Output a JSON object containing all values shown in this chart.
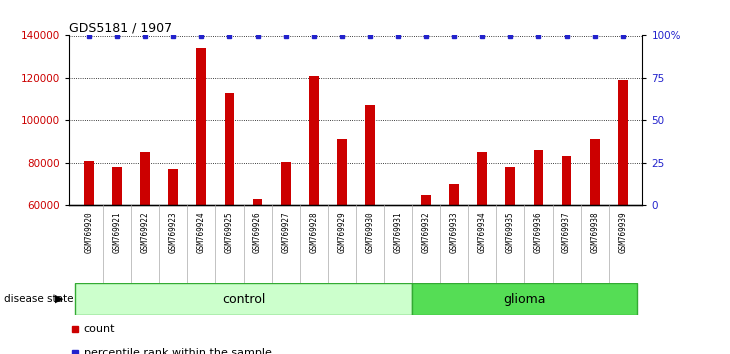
{
  "title": "GDS5181 / 1907",
  "samples": [
    "GSM769920",
    "GSM769921",
    "GSM769922",
    "GSM769923",
    "GSM769924",
    "GSM769925",
    "GSM769926",
    "GSM769927",
    "GSM769928",
    "GSM769929",
    "GSM769930",
    "GSM769931",
    "GSM769932",
    "GSM769933",
    "GSM769934",
    "GSM769935",
    "GSM769936",
    "GSM769937",
    "GSM769938",
    "GSM769939"
  ],
  "counts": [
    81000,
    78000,
    85000,
    77000,
    134000,
    113000,
    63000,
    80500,
    121000,
    91000,
    107000,
    0,
    65000,
    70000,
    85000,
    78000,
    86000,
    83000,
    91000,
    119000
  ],
  "bar_color": "#cc0000",
  "dot_color": "#2222cc",
  "ylim_left": [
    60000,
    140000
  ],
  "ylim_right": [
    0,
    100
  ],
  "yticks_left": [
    60000,
    80000,
    100000,
    120000,
    140000
  ],
  "ytick_labels_left": [
    "60000",
    "80000",
    "100000",
    "120000",
    "140000"
  ],
  "yticks_right": [
    0,
    25,
    50,
    75,
    100
  ],
  "ytick_labels_right": [
    "0",
    "25",
    "50",
    "75",
    "100%"
  ],
  "grid_values": [
    80000,
    100000,
    120000
  ],
  "n_control": 12,
  "n_glioma": 8,
  "control_color": "#ccffcc",
  "glioma_color": "#55dd55",
  "border_color": "#33aa33",
  "disease_state_label": "disease state",
  "control_label": "control",
  "glioma_label": "glioma",
  "legend_count_label": "count",
  "legend_pct_label": "percentile rank within the sample",
  "label_bg_color": "#cccccc",
  "plot_bg": "#ffffff",
  "tick_color_left": "#cc0000",
  "tick_color_right": "#2222cc",
  "bar_width": 0.35
}
